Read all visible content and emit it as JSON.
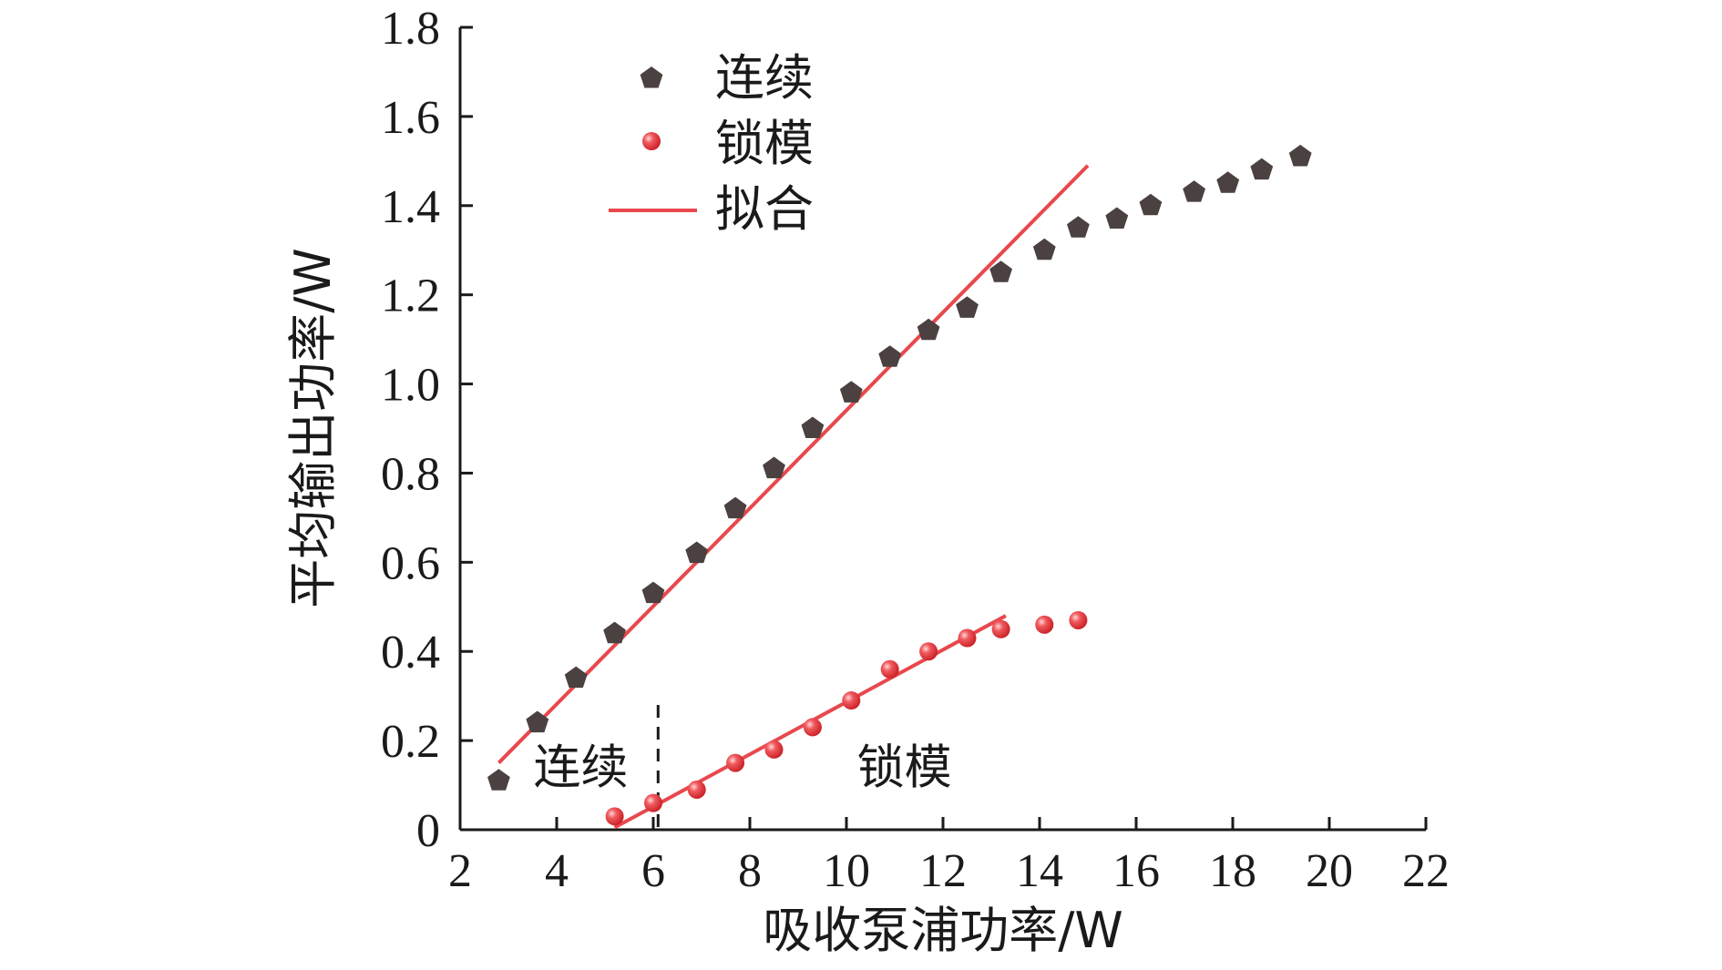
{
  "chart_data": {
    "type": "scatter",
    "xlabel": "吸收泵浦功率/W",
    "ylabel": "平均输出功率/W",
    "xlim": [
      2,
      22
    ],
    "ylim": [
      0,
      1.8
    ],
    "x_ticks": [
      "2",
      "4",
      "6",
      "8",
      "10",
      "12",
      "14",
      "16",
      "18",
      "20",
      "22"
    ],
    "y_ticks": [
      "0",
      "0.2",
      "0.4",
      "0.6",
      "0.8",
      "1.0",
      "1.2",
      "1.4",
      "1.6",
      "1.8"
    ],
    "legend_position": "top-left",
    "series": [
      {
        "name": "连续",
        "marker": "pentagon",
        "color": "#4a4140",
        "x": [
          2.8,
          3.6,
          4.4,
          5.2,
          6.0,
          6.9,
          7.7,
          8.5,
          9.3,
          10.1,
          10.9,
          11.7,
          12.5,
          13.2,
          14.1,
          14.8,
          15.6,
          16.3,
          17.2,
          17.9,
          18.6,
          19.4
        ],
        "y": [
          0.11,
          0.24,
          0.34,
          0.44,
          0.53,
          0.62,
          0.72,
          0.81,
          0.9,
          0.98,
          1.06,
          1.12,
          1.17,
          1.25,
          1.3,
          1.35,
          1.37,
          1.4,
          1.43,
          1.45,
          1.48,
          1.51
        ]
      },
      {
        "name": "锁模",
        "marker": "sphere",
        "color": "#e8383d",
        "x": [
          5.2,
          6.0,
          6.9,
          7.7,
          8.5,
          9.3,
          10.1,
          10.9,
          11.7,
          12.5,
          13.2,
          14.1,
          14.8
        ],
        "y": [
          0.03,
          0.06,
          0.09,
          0.15,
          0.18,
          0.23,
          0.29,
          0.36,
          0.4,
          0.43,
          0.45,
          0.46,
          0.47
        ]
      },
      {
        "name": "拟合",
        "type": "line",
        "color": "#e8484d",
        "segments": [
          {
            "x": [
              2.8,
              15.0
            ],
            "y": [
              0.15,
              1.49
            ]
          },
          {
            "x": [
              5.2,
              13.3
            ],
            "y": [
              0.005,
              0.48
            ]
          }
        ]
      }
    ],
    "annotations": [
      {
        "text": "连续",
        "x": 4.5,
        "y": 0.14
      },
      {
        "text": "锁模",
        "x": 11.2,
        "y": 0.14
      }
    ],
    "divider_x": 6.1
  }
}
